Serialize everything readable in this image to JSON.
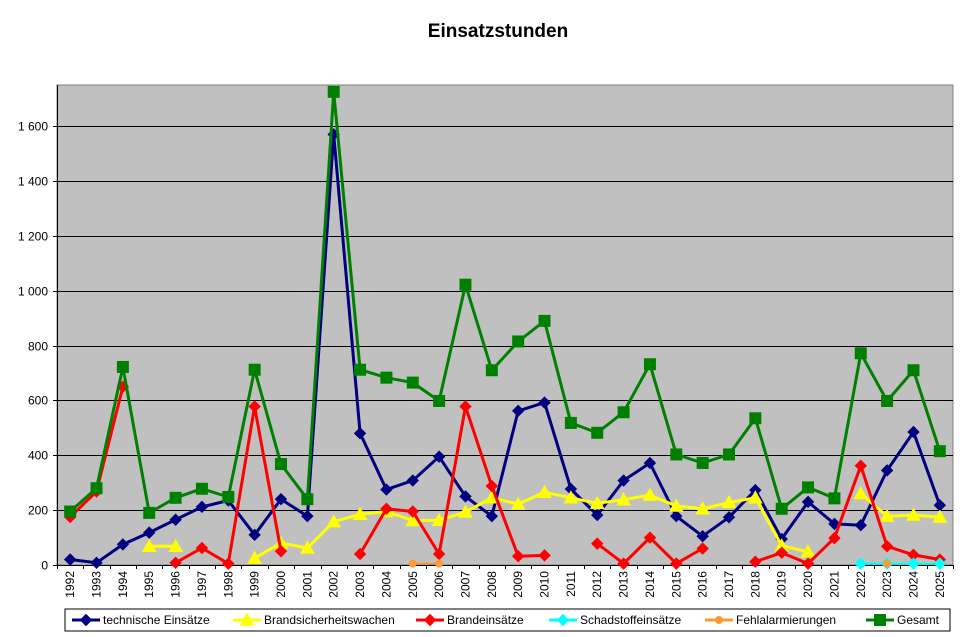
{
  "chart_data": {
    "type": "line",
    "title": "Einsatzstunden",
    "xlabel": "",
    "ylabel": "",
    "ylim": [
      0,
      1750
    ],
    "yticks": [
      0,
      200,
      400,
      600,
      800,
      1000,
      1200,
      1400,
      1600
    ],
    "ytick_labels": [
      "0",
      "200",
      "400",
      "600",
      "800",
      "1 000",
      "1 200",
      "1 400",
      "1 600"
    ],
    "grid": true,
    "legend_position": "bottom",
    "categories": [
      "1992",
      "1993",
      "1994",
      "1995",
      "1996",
      "1997",
      "1998",
      "1999",
      "2000",
      "2001",
      "2002",
      "2003",
      "2004",
      "2005",
      "2006",
      "2007",
      "2008",
      "2009",
      "2010",
      "2011",
      "2012",
      "2013",
      "2014",
      "2015",
      "2016",
      "2017",
      "2018",
      "2019",
      "2020",
      "2021",
      "2022",
      "2023",
      "2024",
      "2025"
    ],
    "series": [
      {
        "name": "technische Einsätze",
        "color": "#000080",
        "marker": "diamond",
        "values": [
          20,
          8,
          75,
          118,
          165,
          212,
          235,
          110,
          240,
          178,
          1570,
          480,
          275,
          308,
          395,
          250,
          178,
          562,
          592,
          277,
          182,
          308,
          372,
          178,
          105,
          174,
          273,
          95,
          230,
          150,
          145,
          345,
          485,
          218
        ]
      },
      {
        "name": "Brandsicherheitswachen",
        "color": "#FFFF00",
        "marker": "triangle",
        "values": [
          null,
          null,
          null,
          68,
          68,
          null,
          null,
          25,
          80,
          62,
          158,
          185,
          195,
          162,
          163,
          193,
          245,
          222,
          265,
          245,
          225,
          238,
          255,
          215,
          205,
          228,
          245,
          70,
          48,
          null,
          260,
          178,
          182,
          175
        ]
      },
      {
        "name": "Brandeinsätze",
        "color": "#FF0000",
        "marker": "diamond",
        "values": [
          175,
          268,
          650,
          null,
          8,
          62,
          5,
          578,
          50,
          null,
          null,
          40,
          205,
          195,
          40,
          578,
          288,
          32,
          35,
          null,
          78,
          5,
          100,
          5,
          60,
          null,
          12,
          45,
          5,
          98,
          362,
          68,
          37,
          20
        ]
      },
      {
        "name": "Schadstoffeinsätze",
        "color": "#00FFFF",
        "marker": "diamond",
        "values": [
          null,
          null,
          null,
          null,
          null,
          null,
          null,
          null,
          null,
          null,
          null,
          null,
          null,
          null,
          null,
          null,
          null,
          null,
          null,
          null,
          null,
          null,
          null,
          null,
          null,
          null,
          null,
          null,
          null,
          null,
          5,
          5,
          5,
          5
        ]
      },
      {
        "name": "Fehlalarmierungen",
        "color": "#FF9933",
        "marker": "circle",
        "values": [
          null,
          null,
          null,
          null,
          null,
          null,
          null,
          null,
          null,
          null,
          null,
          null,
          null,
          5,
          5,
          null,
          null,
          null,
          null,
          null,
          null,
          null,
          null,
          null,
          null,
          null,
          null,
          null,
          null,
          null,
          null,
          5,
          null,
          null
        ]
      },
      {
        "name": "Gesamt",
        "color": "#008000",
        "marker": "square",
        "values": [
          195,
          280,
          722,
          190,
          245,
          278,
          248,
          712,
          368,
          240,
          1725,
          712,
          683,
          665,
          598,
          1022,
          710,
          815,
          890,
          518,
          482,
          557,
          732,
          403,
          372,
          403,
          535,
          205,
          283,
          243,
          772,
          598,
          710,
          415
        ]
      }
    ]
  }
}
